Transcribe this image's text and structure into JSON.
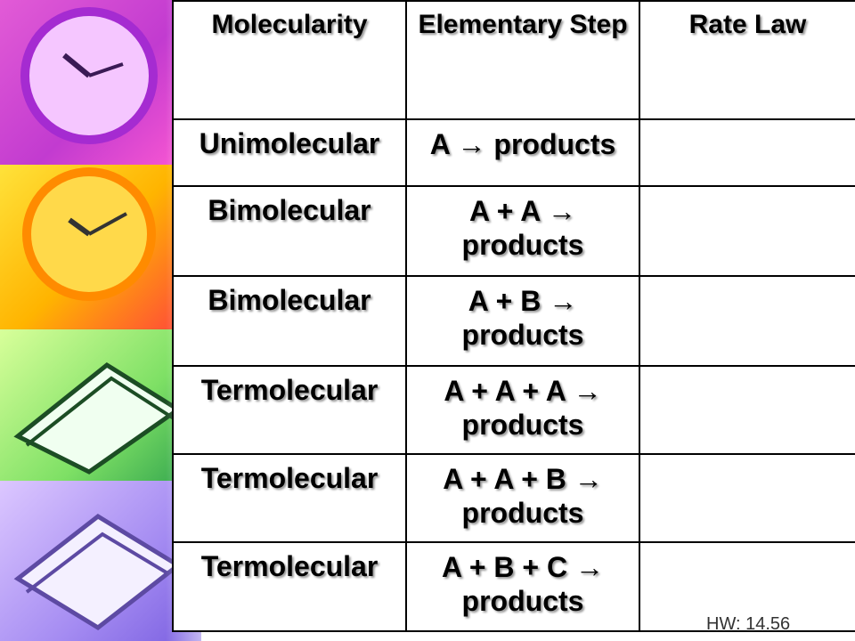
{
  "table": {
    "headers": [
      "Molecularity",
      "Elementary Step",
      "Rate Law"
    ],
    "rows": [
      {
        "molecularity": "Unimolecular",
        "step": "A → products",
        "rate_law": ""
      },
      {
        "molecularity": "Bimolecular",
        "step": "A + A → products",
        "rate_law": ""
      },
      {
        "molecularity": "Bimolecular",
        "step": "A + B → products",
        "rate_law": ""
      },
      {
        "molecularity": "Termolecular",
        "step": "A + A + A → products",
        "rate_law": ""
      },
      {
        "molecularity": "Termolecular",
        "step": "A + A + B → products",
        "rate_law": ""
      },
      {
        "molecularity": "Termolecular",
        "step": "A + B + C → products",
        "rate_law": ""
      }
    ]
  },
  "footer": {
    "hw": "HW: 14.56"
  }
}
